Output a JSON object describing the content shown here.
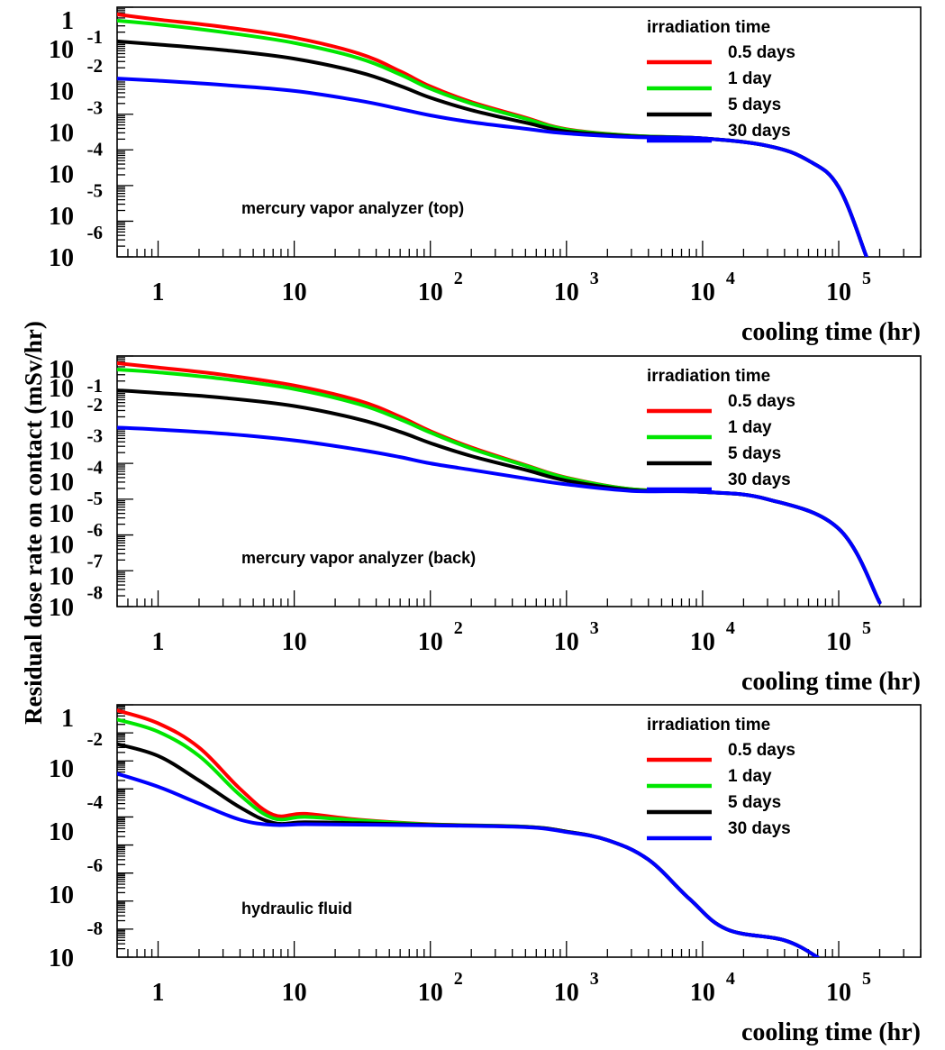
{
  "ylabel": "Residual dose rate on contact (mSv/hr)",
  "series_colors": {
    "0.5 days": "#ff0000",
    "1 day": "#00e600",
    "5 days": "#000000",
    "30 days": "#0000ff"
  },
  "chart_data": [
    {
      "type": "line",
      "xscale": "log",
      "yscale": "log",
      "xlim": [
        0.5,
        400000
      ],
      "ylim": [
        1e-07,
        1
      ],
      "xlabel": "cooling time (hr)",
      "x_tick_labels": [
        {
          "base": "1",
          "exp": ""
        },
        {
          "base": "10",
          "exp": ""
        },
        {
          "base": "10",
          "exp": "2"
        },
        {
          "base": "10",
          "exp": "3"
        },
        {
          "base": "10",
          "exp": "4"
        },
        {
          "base": "10",
          "exp": "5"
        }
      ],
      "y_tick_labels": [
        {
          "base": "1",
          "exp": "-1"
        },
        {
          "base": "10",
          "exp": "-2"
        },
        {
          "base": "10",
          "exp": "-3"
        },
        {
          "base": "10",
          "exp": "-4"
        },
        {
          "base": "10",
          "exp": "-5"
        },
        {
          "base": "10",
          "exp": "-6"
        },
        {
          "base": "10",
          "exp": ""
        }
      ],
      "annotation": "mercury vapor analyzer (top)",
      "legend_title": "irradiation time",
      "legend_position": "top-right",
      "series": [
        {
          "name": "0.5 days",
          "points": [
            [
              0.5,
              0.63
            ],
            [
              1,
              0.45
            ],
            [
              3,
              0.28
            ],
            [
              10,
              0.14
            ],
            [
              30,
              0.05
            ],
            [
              60,
              0.016
            ],
            [
              100,
              0.006
            ],
            [
              200,
              0.0022
            ],
            [
              500,
              0.0008
            ],
            [
              1000,
              0.00038
            ],
            [
              3000,
              0.00025
            ],
            [
              10000,
              0.00021
            ],
            [
              30000,
              0.00013
            ],
            [
              60000,
              5e-05
            ],
            [
              100000,
              9e-06
            ],
            [
              160000,
              1e-07
            ]
          ]
        },
        {
          "name": "1 day",
          "points": [
            [
              0.5,
              0.42
            ],
            [
              1,
              0.33
            ],
            [
              3,
              0.2
            ],
            [
              10,
              0.1
            ],
            [
              30,
              0.037
            ],
            [
              60,
              0.013
            ],
            [
              100,
              0.0052
            ],
            [
              200,
              0.002
            ],
            [
              500,
              0.00075
            ],
            [
              1000,
              0.00037
            ],
            [
              3000,
              0.00025
            ],
            [
              10000,
              0.00021
            ],
            [
              30000,
              0.00013
            ],
            [
              60000,
              5e-05
            ],
            [
              100000,
              9e-06
            ],
            [
              160000,
              1e-07
            ]
          ]
        },
        {
          "name": "5 days",
          "points": [
            [
              0.5,
              0.11
            ],
            [
              1,
              0.09
            ],
            [
              3,
              0.063
            ],
            [
              10,
              0.036
            ],
            [
              30,
              0.015
            ],
            [
              60,
              0.0062
            ],
            [
              100,
              0.0029
            ],
            [
              200,
              0.0013
            ],
            [
              500,
              0.00058
            ],
            [
              1000,
              0.00033
            ],
            [
              3000,
              0.00024
            ],
            [
              10000,
              0.00021
            ],
            [
              30000,
              0.00013
            ],
            [
              60000,
              5e-05
            ],
            [
              100000,
              9e-06
            ],
            [
              160000,
              1e-07
            ]
          ]
        },
        {
          "name": "30 days",
          "points": [
            [
              0.5,
              0.01
            ],
            [
              1,
              0.0087
            ],
            [
              3,
              0.0066
            ],
            [
              10,
              0.0045
            ],
            [
              30,
              0.0024
            ],
            [
              60,
              0.0014
            ],
            [
              100,
              0.00093
            ],
            [
              200,
              0.0006
            ],
            [
              500,
              0.00039
            ],
            [
              1000,
              0.00029
            ],
            [
              3000,
              0.00023
            ],
            [
              10000,
              0.00021
            ],
            [
              30000,
              0.00013
            ],
            [
              60000,
              5e-05
            ],
            [
              100000,
              9e-06
            ],
            [
              160000,
              1e-07
            ]
          ]
        }
      ]
    },
    {
      "type": "line",
      "xscale": "log",
      "yscale": "log",
      "xlim": [
        0.5,
        400000
      ],
      "ylim": [
        1e-09,
        0.01
      ],
      "xlabel": "cooling time (hr)",
      "x_tick_labels": [
        {
          "base": "1",
          "exp": ""
        },
        {
          "base": "10",
          "exp": ""
        },
        {
          "base": "10",
          "exp": "2"
        },
        {
          "base": "10",
          "exp": "3"
        },
        {
          "base": "10",
          "exp": "4"
        },
        {
          "base": "10",
          "exp": "5"
        }
      ],
      "y_tick_labels": [
        {
          "base": "10",
          "exp": "-1"
        },
        {
          "base": "10",
          "exp": "-2"
        },
        {
          "base": "10",
          "exp": "-3"
        },
        {
          "base": "10",
          "exp": "-4"
        },
        {
          "base": "10",
          "exp": "-5"
        },
        {
          "base": "10",
          "exp": "-6"
        },
        {
          "base": "10",
          "exp": "-7"
        },
        {
          "base": "10",
          "exp": "-8"
        },
        {
          "base": "10",
          "exp": ""
        }
      ],
      "annotation": "mercury vapor analyzer (back)",
      "legend_title": "irradiation time",
      "legend_position": "top-right",
      "series": [
        {
          "name": "0.5 days",
          "points": [
            [
              0.5,
              0.0063
            ],
            [
              1,
              0.0048
            ],
            [
              3,
              0.003
            ],
            [
              10,
              0.0015
            ],
            [
              30,
              0.00056
            ],
            [
              60,
              0.0002
            ],
            [
              100,
              8e-05
            ],
            [
              200,
              2.8e-05
            ],
            [
              500,
              9e-06
            ],
            [
              1000,
              4e-06
            ],
            [
              3000,
              1.9e-06
            ],
            [
              10000,
              1.6e-06
            ],
            [
              30000,
              1e-06
            ],
            [
              100000,
              1.5e-07
            ],
            [
              200000,
              1.3e-09
            ]
          ]
        },
        {
          "name": "1 day",
          "points": [
            [
              0.5,
              0.0042
            ],
            [
              1,
              0.0035
            ],
            [
              3,
              0.0023
            ],
            [
              10,
              0.0012
            ],
            [
              30,
              0.00045
            ],
            [
              60,
              0.00017
            ],
            [
              100,
              7.3e-05
            ],
            [
              200,
              2.6e-05
            ],
            [
              500,
              8.6e-06
            ],
            [
              1000,
              3.9e-06
            ],
            [
              3000,
              1.9e-06
            ],
            [
              10000,
              1.6e-06
            ],
            [
              30000,
              1e-06
            ],
            [
              100000,
              1.5e-07
            ],
            [
              200000,
              1.3e-09
            ]
          ]
        },
        {
          "name": "5 days",
          "points": [
            [
              0.5,
              0.0011
            ],
            [
              1,
              0.00093
            ],
            [
              3,
              0.00068
            ],
            [
              10,
              0.0004
            ],
            [
              30,
              0.00017
            ],
            [
              60,
              7.6e-05
            ],
            [
              100,
              3.7e-05
            ],
            [
              200,
              1.6e-05
            ],
            [
              500,
              6.6e-06
            ],
            [
              1000,
              3.3e-06
            ],
            [
              3000,
              1.8e-06
            ],
            [
              10000,
              1.6e-06
            ],
            [
              30000,
              1e-06
            ],
            [
              100000,
              1.5e-07
            ],
            [
              200000,
              1.3e-09
            ]
          ]
        },
        {
          "name": "30 days",
          "points": [
            [
              0.5,
              0.0001
            ],
            [
              1,
              8.8e-05
            ],
            [
              3,
              6.8e-05
            ],
            [
              10,
              4.4e-05
            ],
            [
              30,
              2.4e-05
            ],
            [
              60,
              1.5e-05
            ],
            [
              100,
              1e-05
            ],
            [
              200,
              6.6e-06
            ],
            [
              500,
              3.8e-06
            ],
            [
              1000,
              2.6e-06
            ],
            [
              3000,
              1.7e-06
            ],
            [
              10000,
              1.6e-06
            ],
            [
              30000,
              1e-06
            ],
            [
              100000,
              1.5e-07
            ],
            [
              200000,
              1.3e-09
            ]
          ]
        }
      ]
    },
    {
      "type": "line",
      "xscale": "log",
      "yscale": "log",
      "xlim": [
        0.5,
        400000
      ],
      "ylim": [
        1e-09,
        1
      ],
      "xlabel": "cooling time (hr)",
      "x_tick_labels": [
        {
          "base": "1",
          "exp": ""
        },
        {
          "base": "10",
          "exp": ""
        },
        {
          "base": "10",
          "exp": "2"
        },
        {
          "base": "10",
          "exp": "3"
        },
        {
          "base": "10",
          "exp": "4"
        },
        {
          "base": "10",
          "exp": "5"
        }
      ],
      "y_tick_labels": [
        {
          "base": "1",
          "exp": ""
        },
        {
          "base": "",
          "exp": "-2"
        },
        {
          "base": "10",
          "exp": ""
        },
        {
          "base": "",
          "exp": "-4"
        },
        {
          "base": "10",
          "exp": ""
        },
        {
          "base": "",
          "exp": "-6"
        },
        {
          "base": "10",
          "exp": ""
        },
        {
          "base": "",
          "exp": "-8"
        },
        {
          "base": "10",
          "exp": ""
        }
      ],
      "annotation": "hydraulic fluid",
      "legend_title": "irradiation time",
      "legend_position": "top-right",
      "series": [
        {
          "name": "0.5 days",
          "points": [
            [
              0.5,
              0.63
            ],
            [
              1,
              0.22
            ],
            [
              2,
              0.03
            ],
            [
              4,
              0.001
            ],
            [
              7,
              0.00012
            ],
            [
              12,
              0.00013
            ],
            [
              30,
              8e-05
            ],
            [
              100,
              5.5e-05
            ],
            [
              500,
              4.5e-05
            ],
            [
              1000,
              3e-05
            ],
            [
              2000,
              1.5e-05
            ],
            [
              4000,
              3e-06
            ],
            [
              8000,
              1.2e-07
            ],
            [
              15000,
              1e-08
            ],
            [
              40000,
              4e-09
            ],
            [
              70000,
              1e-09
            ]
          ]
        },
        {
          "name": "1 day",
          "points": [
            [
              0.5,
              0.3
            ],
            [
              1,
              0.11
            ],
            [
              2,
              0.015
            ],
            [
              4,
              0.0006
            ],
            [
              7,
              9e-05
            ],
            [
              12,
              0.0001
            ],
            [
              30,
              7.5e-05
            ],
            [
              100,
              5.4e-05
            ],
            [
              500,
              4.5e-05
            ],
            [
              1000,
              3e-05
            ],
            [
              2000,
              1.5e-05
            ],
            [
              4000,
              3e-06
            ],
            [
              8000,
              1.2e-07
            ],
            [
              15000,
              1e-08
            ],
            [
              40000,
              4e-09
            ],
            [
              70000,
              1e-09
            ]
          ]
        },
        {
          "name": "5 days",
          "points": [
            [
              0.5,
              0.04
            ],
            [
              1,
              0.015
            ],
            [
              2,
              0.002
            ],
            [
              4,
              0.00022
            ],
            [
              7,
              6.2e-05
            ],
            [
              12,
              6.5e-05
            ],
            [
              30,
              6e-05
            ],
            [
              100,
              5.2e-05
            ],
            [
              500,
              4.4e-05
            ],
            [
              1000,
              3e-05
            ],
            [
              2000,
              1.5e-05
            ],
            [
              4000,
              3e-06
            ],
            [
              8000,
              1.2e-07
            ],
            [
              15000,
              1e-08
            ],
            [
              40000,
              4e-09
            ],
            [
              70000,
              1e-09
            ]
          ]
        },
        {
          "name": "30 days",
          "points": [
            [
              0.5,
              0.0035
            ],
            [
              1,
              0.0012
            ],
            [
              2,
              0.0003
            ],
            [
              4,
              8e-05
            ],
            [
              7,
              5.2e-05
            ],
            [
              12,
              5.5e-05
            ],
            [
              30,
              5.3e-05
            ],
            [
              100,
              5e-05
            ],
            [
              500,
              4.3e-05
            ],
            [
              1000,
              2.9e-05
            ],
            [
              2000,
              1.5e-05
            ],
            [
              4000,
              3e-06
            ],
            [
              8000,
              1.2e-07
            ],
            [
              15000,
              1e-08
            ],
            [
              40000,
              4e-09
            ],
            [
              70000,
              1e-09
            ]
          ]
        }
      ]
    }
  ]
}
